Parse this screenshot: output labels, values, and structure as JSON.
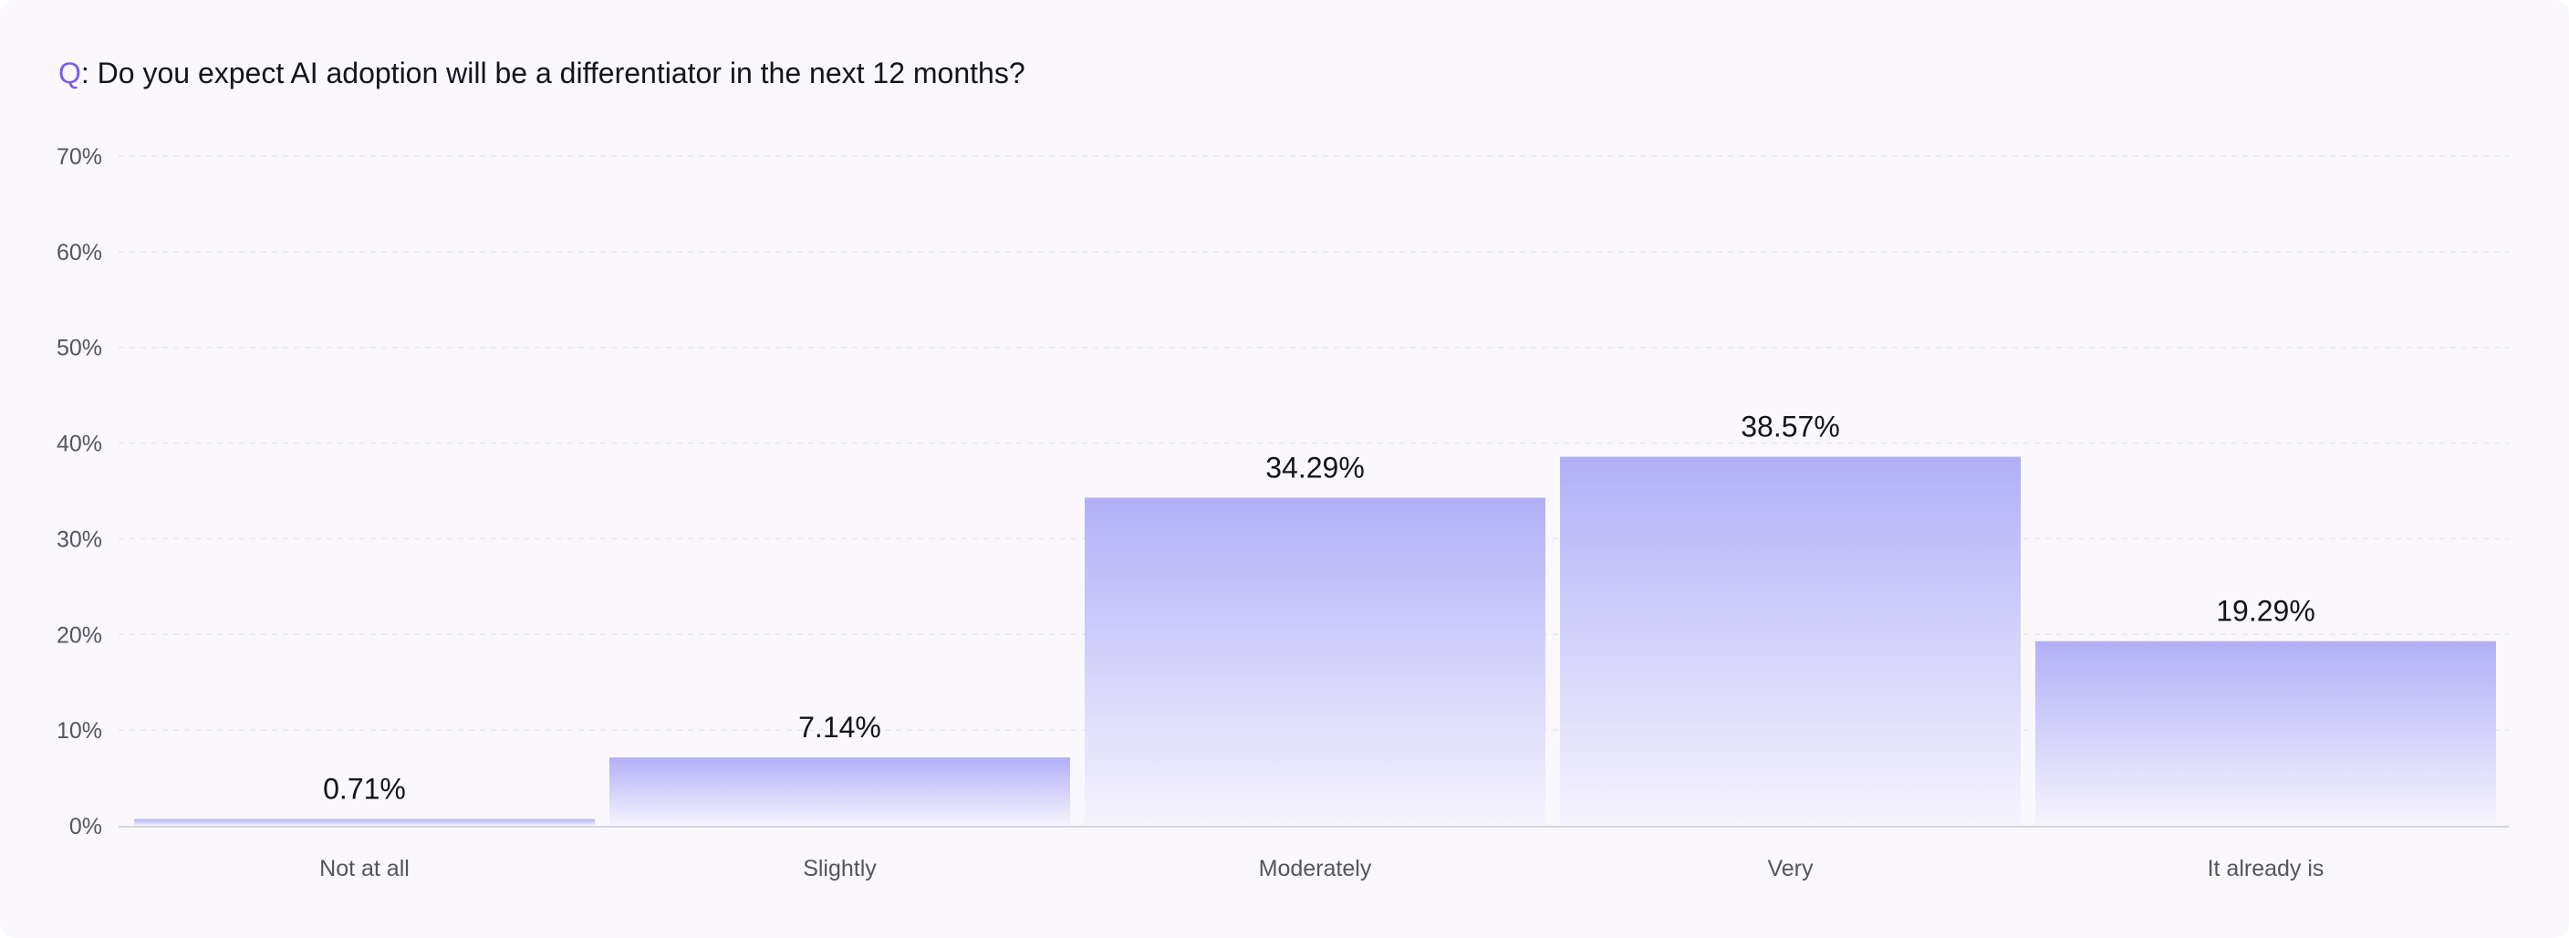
{
  "question": {
    "prefix": "Q",
    "text": ": Do you expect AI adoption will be a differentiator in the next 12 months?"
  },
  "colors": {
    "bar_top": "#b1b0f8",
    "bar_bottom": "#f6f4fd",
    "prefix": "#7a5af0",
    "grid": "#e8e6ee",
    "axis": "#d6d4dc"
  },
  "chart_data": {
    "type": "bar",
    "categories": [
      "Not at all",
      "Slightly",
      "Moderately",
      "Very",
      "It already is"
    ],
    "values": [
      0.71,
      7.14,
      34.29,
      38.57,
      19.29
    ],
    "value_labels": [
      "0.71%",
      "7.14%",
      "34.29%",
      "38.57%",
      "19.29%"
    ],
    "yticks": [
      "0%",
      "10%",
      "20%",
      "30%",
      "40%",
      "50%",
      "60%",
      "70%"
    ],
    "ylim": [
      0,
      70
    ],
    "grid": true,
    "legend": "none"
  }
}
